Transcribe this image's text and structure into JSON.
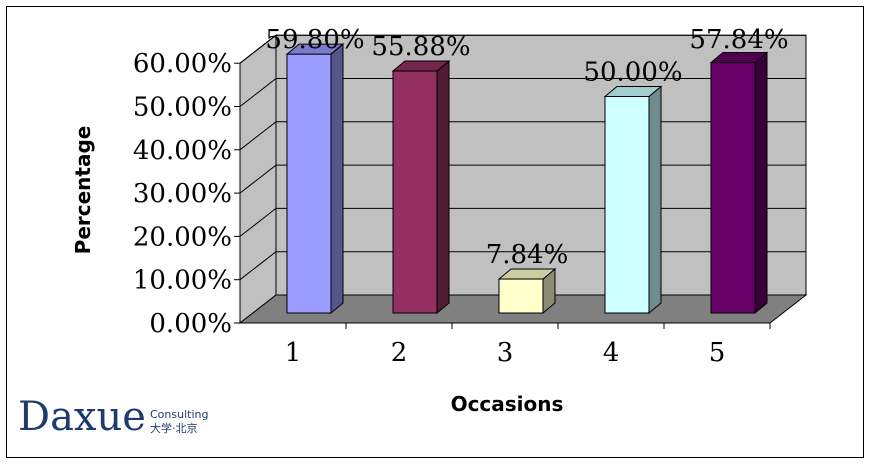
{
  "chart_data": {
    "type": "bar",
    "title": "",
    "xlabel": "Occasions",
    "ylabel": "Percentage",
    "categories": [
      "1",
      "2",
      "3",
      "4",
      "5"
    ],
    "values": [
      59.8,
      55.88,
      7.84,
      50.0,
      57.84
    ],
    "data_labels": [
      "59.80%",
      "55.88%",
      "7.84%",
      "50.00%",
      "57.84%"
    ],
    "colors": [
      "#9a9cff",
      "#933060",
      "#ffffcc",
      "#ccffff",
      "#660066"
    ],
    "ylim": [
      0,
      60
    ],
    "yticks": [
      "0.00%",
      "10.00%",
      "20.00%",
      "30.00%",
      "40.00%",
      "50.00%",
      "60.00%"
    ],
    "grid": true,
    "legend": "none",
    "style": "3d-column",
    "wall_color": "#c0c0c0",
    "floor_color": "#808080"
  },
  "logo": {
    "name": "Daxue",
    "sub1": "Consulting",
    "sub2": "大学·北京"
  }
}
